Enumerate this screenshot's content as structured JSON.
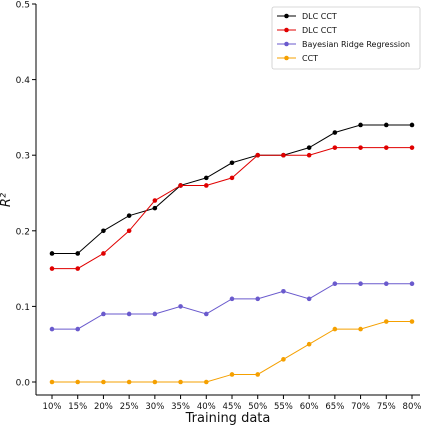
{
  "chart_data": {
    "type": "line",
    "title": "",
    "xlabel": "Training data",
    "ylabel": "R²",
    "ylim": [
      0,
      0.5
    ],
    "yticks": [
      "0.0",
      "0.1",
      "0.2",
      "0.3",
      "0.4",
      "0.5"
    ],
    "categories": [
      "10%",
      "15%",
      "20%",
      "25%",
      "30%",
      "35%",
      "40%",
      "45%",
      "50%",
      "55%",
      "60%",
      "65%",
      "70%",
      "75%",
      "80%"
    ],
    "grid": false,
    "legend_position": "top-right",
    "series": [
      {
        "name": "DLC CCT",
        "color": "#000000",
        "values": [
          0.17,
          0.17,
          0.2,
          0.22,
          0.23,
          0.26,
          0.27,
          0.29,
          0.3,
          0.3,
          0.31,
          0.33,
          0.34,
          0.34,
          0.34
        ]
      },
      {
        "name": "DLC CCT",
        "color": "#e00000",
        "values": [
          0.15,
          0.15,
          0.17,
          0.2,
          0.24,
          0.26,
          0.26,
          0.27,
          0.3,
          0.3,
          0.3,
          0.31,
          0.31,
          0.31,
          0.31
        ]
      },
      {
        "name": "Bayesian Ridge Regression",
        "color": "#6a5acd",
        "values": [
          0.07,
          0.07,
          0.09,
          0.09,
          0.09,
          0.1,
          0.09,
          0.11,
          0.11,
          0.12,
          0.11,
          0.13,
          0.13,
          0.13,
          0.13
        ]
      },
      {
        "name": "CCT",
        "color": "#f5a000",
        "values": [
          0.0,
          0.0,
          0.0,
          0.0,
          0.0,
          0.0,
          0.0,
          0.01,
          0.01,
          0.03,
          0.05,
          0.07,
          0.07,
          0.08,
          0.08
        ]
      }
    ]
  }
}
